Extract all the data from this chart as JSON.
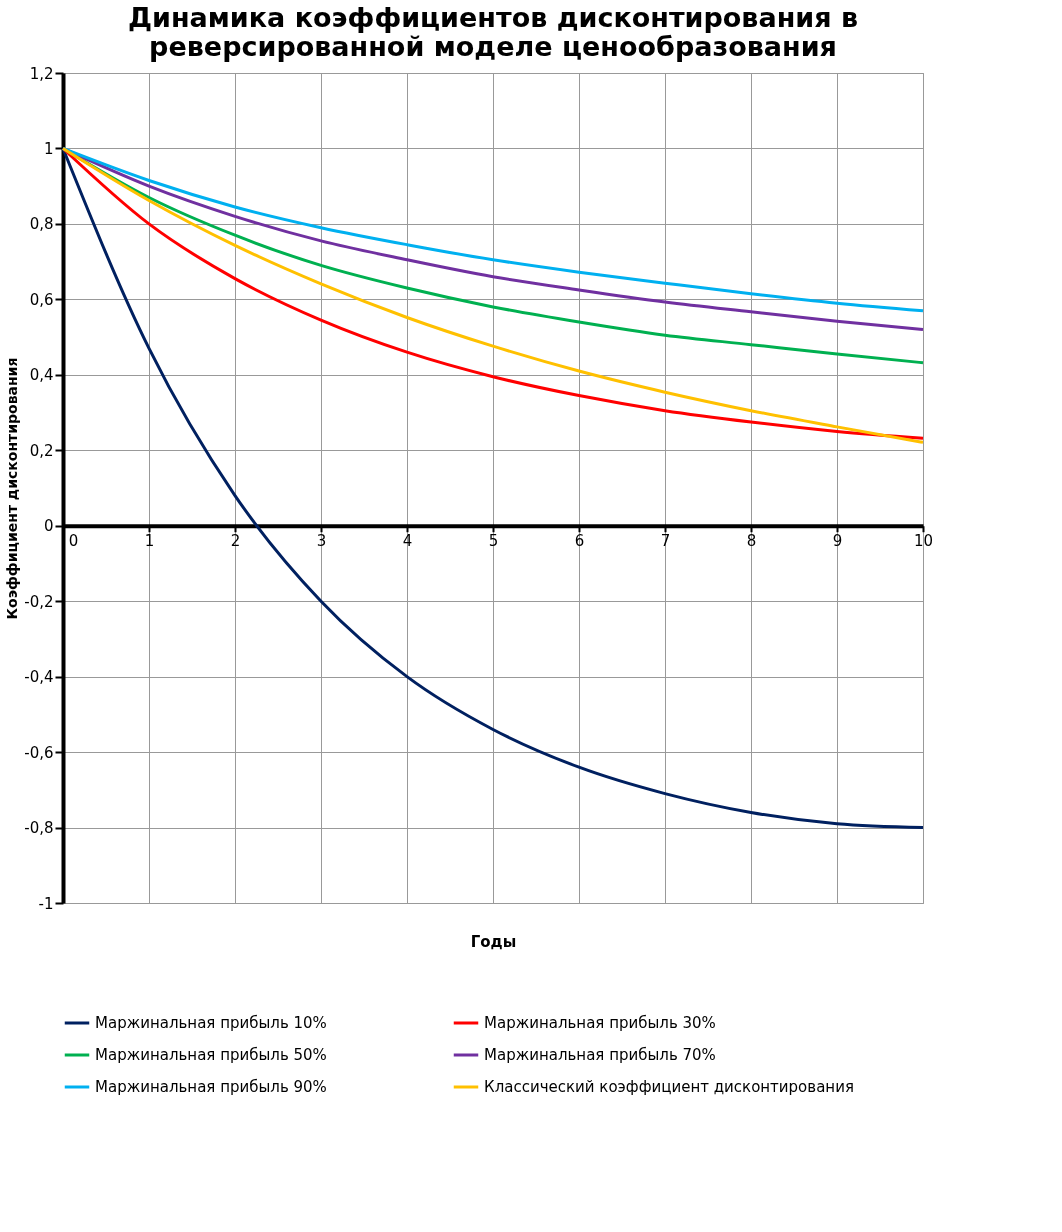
{
  "chart_data": {
    "type": "line",
    "title": "Динамика коэффициентов дисконтирования в\nреверсированной моделе ценообразования",
    "xlabel": "Годы",
    "ylabel": "Коэффициент дисконтирования",
    "x": [
      0,
      1,
      2,
      3,
      4,
      5,
      6,
      7,
      8,
      9,
      10
    ],
    "series": [
      {
        "name": "Маржинальная прибыль 10%",
        "color": "#002060",
        "values": [
          1,
          0.47,
          0.08,
          -0.2,
          -0.4,
          -0.54,
          -0.64,
          -0.71,
          -0.76,
          -0.79,
          -0.8
        ]
      },
      {
        "name": "Маржинальная прибыль 30%",
        "color": "#ff0000",
        "values": [
          1,
          0.8,
          0.655,
          0.545,
          0.46,
          0.395,
          0.345,
          0.305,
          0.275,
          0.25,
          0.232
        ]
      },
      {
        "name": "Маржинальная прибыль 50%",
        "color": "#00b050",
        "values": [
          1,
          0.87,
          0.77,
          0.69,
          0.63,
          0.58,
          0.54,
          0.505,
          0.48,
          0.455,
          0.432
        ]
      },
      {
        "name": "Маржинальная прибыль 70%",
        "color": "#7030a0",
        "values": [
          1,
          0.9,
          0.82,
          0.755,
          0.705,
          0.66,
          0.625,
          0.593,
          0.567,
          0.542,
          0.52
        ]
      },
      {
        "name": "Маржинальная прибыль 90%",
        "color": "#00b0f0",
        "values": [
          1,
          0.915,
          0.845,
          0.79,
          0.745,
          0.705,
          0.672,
          0.643,
          0.615,
          0.59,
          0.57
        ]
      },
      {
        "name": "Классический коэффициент дисконтирования",
        "color": "#ffc000",
        "values": [
          1,
          0.862,
          0.743,
          0.641,
          0.552,
          0.476,
          0.41,
          0.354,
          0.305,
          0.262,
          0.221
        ]
      }
    ],
    "xlim": [
      0,
      10
    ],
    "xticks": [
      0,
      1,
      2,
      3,
      4,
      5,
      6,
      7,
      8,
      9,
      10
    ],
    "ylim": [
      -1,
      1.2
    ],
    "yticks": [
      -1,
      {
        "value": -0.8,
        "label": "-0,8"
      },
      {
        "value": -0.6,
        "label": "-0,6"
      },
      {
        "value": -0.4,
        "label": "-0,4"
      },
      {
        "value": -0.2,
        "label": "-0,2"
      },
      0,
      {
        "value": 0.2,
        "label": "0,2"
      },
      {
        "value": 0.4,
        "label": "0,4"
      },
      {
        "value": 0.6,
        "label": "0,6"
      },
      {
        "value": 0.8,
        "label": "0,8"
      },
      1,
      {
        "value": 1.2,
        "label": "1,2"
      }
    ],
    "grid": true,
    "legend": "bottom",
    "marker": "none",
    "line_style": "solid"
  }
}
